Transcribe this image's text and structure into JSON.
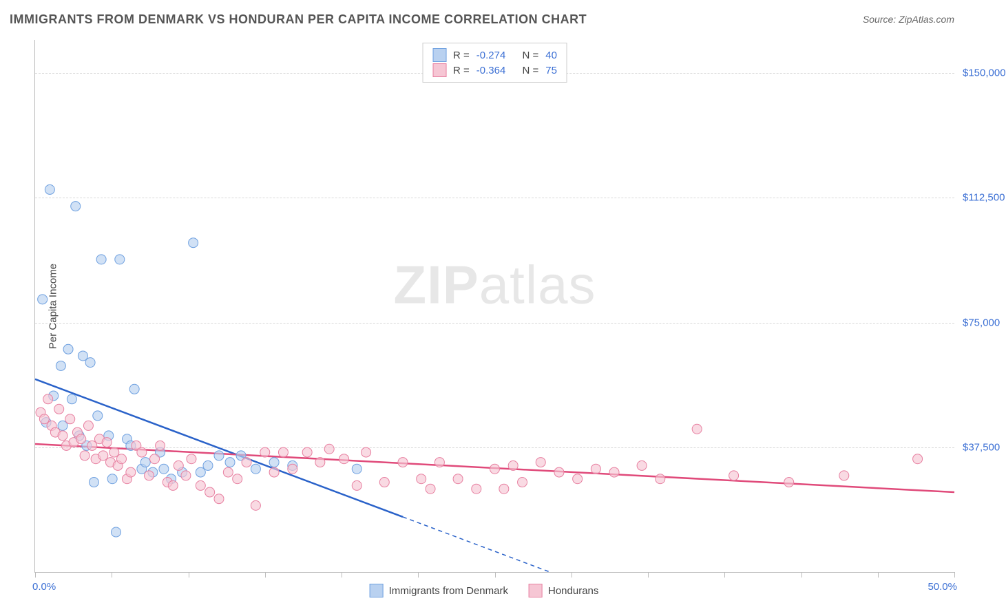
{
  "title": "IMMIGRANTS FROM DENMARK VS HONDURAN PER CAPITA INCOME CORRELATION CHART",
  "source_label": "Source:",
  "source_value": "ZipAtlas.com",
  "watermark": {
    "bold": "ZIP",
    "rest": "atlas"
  },
  "chart": {
    "type": "scatter",
    "background_color": "#ffffff",
    "grid_color": "#d8d8d8",
    "axis_color": "#bbbbbb",
    "text_color": "#444444",
    "value_color": "#3b6fd4",
    "xaxis": {
      "min": 0.0,
      "max": 50.0,
      "tick_step": 4.167,
      "label_min": "0.0%",
      "label_max": "50.0%"
    },
    "yaxis": {
      "title": "Per Capita Income",
      "min": 0,
      "max": 160000,
      "ticks": [
        37500,
        75000,
        112500,
        150000
      ],
      "tick_labels": [
        "$37,500",
        "$75,000",
        "$112,500",
        "$150,000"
      ]
    },
    "series": [
      {
        "name": "Immigrants from Denmark",
        "color_fill": "#b9d1f0",
        "color_stroke": "#6ea0e0",
        "marker_size": 14,
        "marker_opacity": 0.65,
        "R": "-0.274",
        "N": "40",
        "trend": {
          "color": "#2a62c9",
          "width": 2.5,
          "x1": 0.0,
          "y1": 58000,
          "x2": 28.0,
          "y2": 0,
          "dash_after_x": 20.0
        },
        "points": [
          [
            0.4,
            82000
          ],
          [
            0.6,
            45000
          ],
          [
            0.8,
            115000
          ],
          [
            1.0,
            53000
          ],
          [
            1.4,
            62000
          ],
          [
            1.5,
            44000
          ],
          [
            1.8,
            67000
          ],
          [
            2.0,
            52000
          ],
          [
            2.2,
            110000
          ],
          [
            2.4,
            41000
          ],
          [
            2.6,
            65000
          ],
          [
            2.8,
            38000
          ],
          [
            3.0,
            63000
          ],
          [
            3.2,
            27000
          ],
          [
            3.4,
            47000
          ],
          [
            3.6,
            94000
          ],
          [
            4.0,
            41000
          ],
          [
            4.2,
            28000
          ],
          [
            4.4,
            12000
          ],
          [
            4.6,
            94000
          ],
          [
            5.0,
            40000
          ],
          [
            5.2,
            38000
          ],
          [
            5.4,
            55000
          ],
          [
            5.8,
            31000
          ],
          [
            6.0,
            33000
          ],
          [
            6.4,
            30000
          ],
          [
            6.8,
            36000
          ],
          [
            7.0,
            31000
          ],
          [
            7.4,
            28000
          ],
          [
            8.0,
            30000
          ],
          [
            8.6,
            99000
          ],
          [
            9.0,
            30000
          ],
          [
            9.4,
            32000
          ],
          [
            10.0,
            35000
          ],
          [
            10.6,
            33000
          ],
          [
            11.2,
            35000
          ],
          [
            12.0,
            31000
          ],
          [
            13.0,
            33000
          ],
          [
            14.0,
            32000
          ],
          [
            17.5,
            31000
          ]
        ]
      },
      {
        "name": "Hondurans",
        "color_fill": "#f6c6d4",
        "color_stroke": "#e77fa0",
        "marker_size": 14,
        "marker_opacity": 0.65,
        "R": "-0.364",
        "N": "75",
        "trend": {
          "color": "#e04a7a",
          "width": 2.5,
          "x1": 0.0,
          "y1": 38500,
          "x2": 50.0,
          "y2": 24000,
          "dash_after_x": 999
        },
        "points": [
          [
            0.3,
            48000
          ],
          [
            0.5,
            46000
          ],
          [
            0.7,
            52000
          ],
          [
            0.9,
            44000
          ],
          [
            1.1,
            42000
          ],
          [
            1.3,
            49000
          ],
          [
            1.5,
            41000
          ],
          [
            1.7,
            38000
          ],
          [
            1.9,
            46000
          ],
          [
            2.1,
            39000
          ],
          [
            2.3,
            42000
          ],
          [
            2.5,
            40000
          ],
          [
            2.7,
            35000
          ],
          [
            2.9,
            44000
          ],
          [
            3.1,
            38000
          ],
          [
            3.3,
            34000
          ],
          [
            3.5,
            40000
          ],
          [
            3.7,
            35000
          ],
          [
            3.9,
            39000
          ],
          [
            4.1,
            33000
          ],
          [
            4.3,
            36000
          ],
          [
            4.5,
            32000
          ],
          [
            4.7,
            34000
          ],
          [
            5.0,
            28000
          ],
          [
            5.2,
            30000
          ],
          [
            5.5,
            38000
          ],
          [
            5.8,
            36000
          ],
          [
            6.2,
            29000
          ],
          [
            6.5,
            34000
          ],
          [
            6.8,
            38000
          ],
          [
            7.2,
            27000
          ],
          [
            7.5,
            26000
          ],
          [
            7.8,
            32000
          ],
          [
            8.2,
            29000
          ],
          [
            8.5,
            34000
          ],
          [
            9.0,
            26000
          ],
          [
            9.5,
            24000
          ],
          [
            10.0,
            22000
          ],
          [
            10.5,
            30000
          ],
          [
            11.0,
            28000
          ],
          [
            11.5,
            33000
          ],
          [
            12.0,
            20000
          ],
          [
            12.5,
            36000
          ],
          [
            13.0,
            30000
          ],
          [
            13.5,
            36000
          ],
          [
            14.0,
            31000
          ],
          [
            14.8,
            36000
          ],
          [
            15.5,
            33000
          ],
          [
            16.0,
            37000
          ],
          [
            16.8,
            34000
          ],
          [
            17.5,
            26000
          ],
          [
            18.0,
            36000
          ],
          [
            19.0,
            27000
          ],
          [
            20.0,
            33000
          ],
          [
            21.0,
            28000
          ],
          [
            21.5,
            25000
          ],
          [
            22.0,
            33000
          ],
          [
            23.0,
            28000
          ],
          [
            24.0,
            25000
          ],
          [
            25.0,
            31000
          ],
          [
            25.5,
            25000
          ],
          [
            26.0,
            32000
          ],
          [
            26.5,
            27000
          ],
          [
            27.5,
            33000
          ],
          [
            28.5,
            30000
          ],
          [
            29.5,
            28000
          ],
          [
            30.5,
            31000
          ],
          [
            31.5,
            30000
          ],
          [
            33.0,
            32000
          ],
          [
            34.0,
            28000
          ],
          [
            36.0,
            43000
          ],
          [
            38.0,
            29000
          ],
          [
            41.0,
            27000
          ],
          [
            44.0,
            29000
          ],
          [
            48.0,
            34000
          ]
        ]
      }
    ],
    "legend_top": {
      "R_label": "R =",
      "N_label": "N ="
    },
    "legend_bottom": [
      "Immigrants from Denmark",
      "Hondurans"
    ]
  }
}
